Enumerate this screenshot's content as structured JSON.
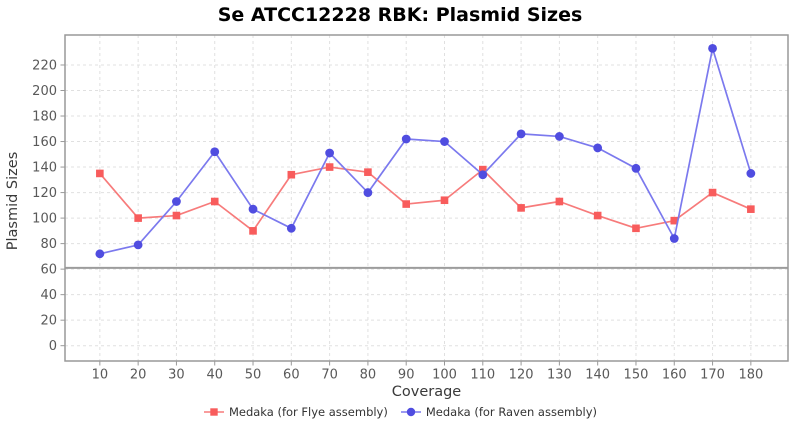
{
  "chart_data": {
    "type": "line",
    "title": "Se ATCC12228 RBK: Plasmid Sizes",
    "xlabel": "Coverage",
    "ylabel": "Plasmid Sizes",
    "x": [
      10,
      20,
      30,
      40,
      50,
      60,
      70,
      80,
      90,
      100,
      110,
      120,
      130,
      140,
      150,
      160,
      170,
      180
    ],
    "series": [
      {
        "name": "Medaka (for Flye assembly)",
        "marker": "square",
        "marker_color": "#f85c5c",
        "line_color": "#f77b7b",
        "values": [
          135,
          100,
          102,
          113,
          90,
          134,
          140,
          136,
          111,
          114,
          138,
          108,
          113,
          102,
          92,
          98,
          120,
          107
        ]
      },
      {
        "name": "Medaka (for Raven assembly)",
        "marker": "circle",
        "marker_color": "#504de0",
        "line_color": "#7b79ee",
        "values": [
          72,
          79,
          113,
          152,
          107,
          92,
          151,
          120,
          162,
          160,
          134,
          166,
          164,
          155,
          139,
          84,
          233,
          135
        ]
      }
    ],
    "x_ticks": [
      10,
      20,
      30,
      40,
      50,
      60,
      70,
      80,
      90,
      100,
      110,
      120,
      130,
      140,
      150,
      160,
      170,
      180
    ],
    "y_ticks": [
      0,
      20,
      40,
      60,
      80,
      100,
      120,
      140,
      160,
      180,
      200,
      220
    ],
    "xlim": [
      0.9,
      189.7
    ],
    "ylim": [
      -12,
      243.5
    ],
    "grid": "dashed",
    "grid_color": "#e0e0e0",
    "frame_color": "#999999",
    "tick_label_color": "#595959",
    "axis_label_color": "#3a3a3a",
    "title_color": "#000000",
    "reference_line": {
      "y": 61,
      "color": "#9c9c9c"
    },
    "legend_position": "bottom"
  }
}
